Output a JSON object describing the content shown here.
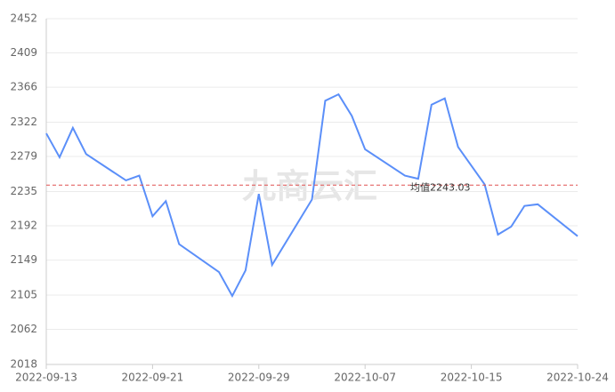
{
  "chart_data": {
    "type": "line",
    "watermark": "九商云汇",
    "categories": [
      "2022-09-13",
      null,
      null,
      null,
      null,
      null,
      null,
      null,
      "2022-09-21",
      null,
      null,
      null,
      null,
      null,
      null,
      null,
      "2022-09-29",
      null,
      null,
      null,
      null,
      null,
      null,
      null,
      "2022-10-07",
      null,
      null,
      null,
      null,
      null,
      null,
      null,
      "2022-10-15",
      null,
      null,
      null,
      null,
      null,
      null,
      null,
      "2022-10-24"
    ],
    "series": [
      {
        "color": "#5b8ff9",
        "values": [
          2308,
          2278,
          2315,
          2282,
          null,
          null,
          2249,
          2255,
          2204,
          2223,
          2169,
          null,
          null,
          2134,
          2104,
          2136,
          2232,
          2143,
          null,
          null,
          2225,
          2349,
          2357,
          2330,
          2288,
          null,
          null,
          2255,
          2251,
          2344,
          2352,
          2291,
          null,
          2244,
          2181,
          2191,
          2217,
          2219,
          null,
          null,
          2179
        ]
      }
    ],
    "span_gaps": true,
    "average": {
      "value": 2243.03,
      "label": "均值2243.03",
      "color": "#e05050"
    },
    "ylim": [
      2018,
      2452
    ],
    "yticks": [
      2018,
      2062,
      2105,
      2149,
      2192,
      2235,
      2279,
      2322,
      2366,
      2409,
      2452
    ],
    "grid": true
  }
}
